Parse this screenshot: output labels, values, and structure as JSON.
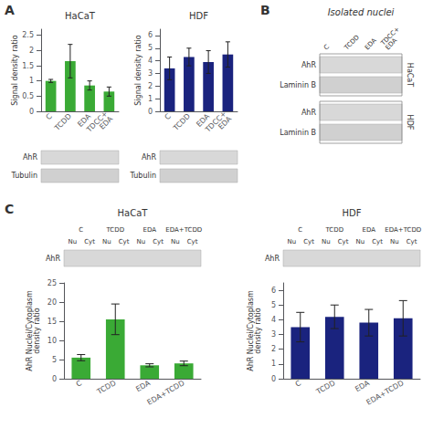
{
  "chart_data": [
    {
      "type": "bar",
      "title": "HaCaT",
      "categories": [
        "C",
        "TCDD",
        "EDA",
        "TDCC+\nEDA"
      ],
      "values": [
        1.0,
        1.65,
        0.85,
        0.65
      ],
      "errors": [
        0.05,
        0.55,
        0.15,
        0.15
      ],
      "color": "#3aaa35",
      "ylabel": "Signal density ratio",
      "ylim": [
        0,
        2.7
      ],
      "yticks": [
        0,
        0.5,
        1.0,
        1.5,
        2.0,
        2.5
      ],
      "grid": false,
      "annotations": [
        "A",
        "AhR",
        "Tubulin"
      ]
    },
    {
      "type": "bar",
      "title": "HDF",
      "categories": [
        "C",
        "TCDD",
        "EDA",
        "TDCC+\nEDA"
      ],
      "values": [
        3.4,
        4.3,
        3.9,
        4.5
      ],
      "errors": [
        0.9,
        0.7,
        0.9,
        1.0
      ],
      "color": "#1a237e",
      "ylabel": "Signal density ratio",
      "ylim": [
        0,
        6.5
      ],
      "yticks": [
        0,
        1,
        2,
        3,
        4,
        5,
        6
      ],
      "grid": false,
      "annotations": [
        "AhR",
        "Tubulin",
        "B",
        "Isolated nuclei",
        "C",
        "TCDD",
        "EDA",
        "TDCC+\nEDA",
        "AhR",
        "Laminin B",
        "AhR",
        "Laminin B",
        "HaCaT",
        "HDF"
      ]
    },
    {
      "type": "bar",
      "title": "HaCaT",
      "categories": [
        "C",
        "TCDD",
        "EDA",
        "EDA+TCDD"
      ],
      "values": [
        5.5,
        15.5,
        3.5,
        4.0
      ],
      "errors": [
        0.8,
        4.0,
        0.4,
        0.6
      ],
      "color": "#3aaa35",
      "ylabel": "AhR Nuclei/Cytoplasm\ndensity ratio",
      "ylim": [
        0,
        25
      ],
      "yticks": [
        0,
        5,
        10,
        15,
        20,
        25
      ],
      "grid": false,
      "annotations": [
        "C",
        "C",
        "TCDD",
        "EDA",
        "EDA+TCDD",
        "Nu",
        "Cyt",
        "Nu",
        "Cyt",
        "Nu",
        "Cyt",
        "Nu",
        "Cyt",
        "AhR"
      ]
    },
    {
      "type": "bar",
      "title": "HDF",
      "categories": [
        "C",
        "TCDD",
        "EDA",
        "EDA+TCDD"
      ],
      "values": [
        3.5,
        4.2,
        3.8,
        4.1
      ],
      "errors": [
        1.0,
        0.8,
        0.9,
        1.2
      ],
      "color": "#1a237e",
      "ylabel": "AhR Nuclei/Cytoplasm\ndensity ratio",
      "ylim": [
        0,
        6.5
      ],
      "yticks": [
        0,
        1,
        2,
        3,
        4,
        5,
        6
      ],
      "grid": false,
      "annotations": [
        "C",
        "TCDD",
        "EDA",
        "EDA+TCDD",
        "Nu",
        "Cyt",
        "Nu",
        "Cyt",
        "Nu",
        "Cyt",
        "Nu",
        "Cyt",
        "AhR"
      ]
    }
  ]
}
